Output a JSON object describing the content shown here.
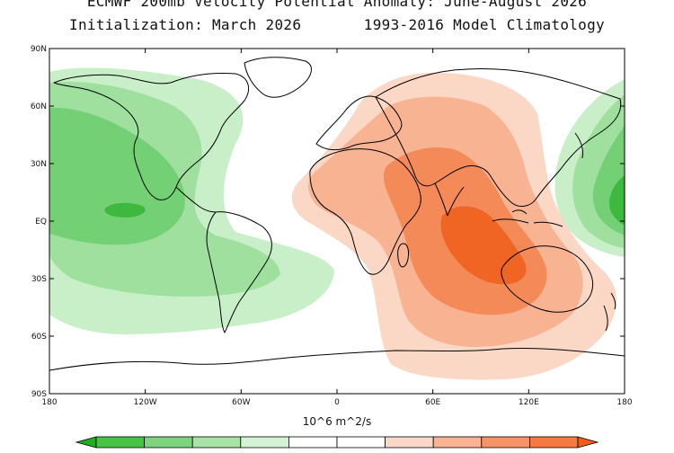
{
  "title": {
    "line1": "ECMWF 200mb Velocity Potential Anomaly: June-August 2026",
    "line2": "Initialization: March 2026       1993-2016 Model Climatology"
  },
  "axes": {
    "lat_labels": [
      "90N",
      "60N",
      "30N",
      "EQ",
      "30S",
      "60S",
      "90S"
    ],
    "lon_labels": [
      "180",
      "120W",
      "60W",
      "0",
      "60E",
      "120E",
      "180"
    ]
  },
  "colorbar": {
    "unit_label": "10^6 m^2/s",
    "colors": [
      "#1fb01f",
      "#46c446",
      "#7ed47e",
      "#a8e4a8",
      "#d4f2d4",
      "#ffffff",
      "#ffffff",
      "#fbd7c8",
      "#f9b496",
      "#f79467",
      "#f57a40",
      "#f45b18"
    ]
  },
  "colors": {
    "green_1": "#c9efc9",
    "green_2": "#9fe09f",
    "green_3": "#74d074",
    "green_4": "#3fb83f",
    "orange_1": "#fbd8c6",
    "orange_2": "#f8b392",
    "orange_3": "#f48a58",
    "orange_4": "#f06424"
  }
}
